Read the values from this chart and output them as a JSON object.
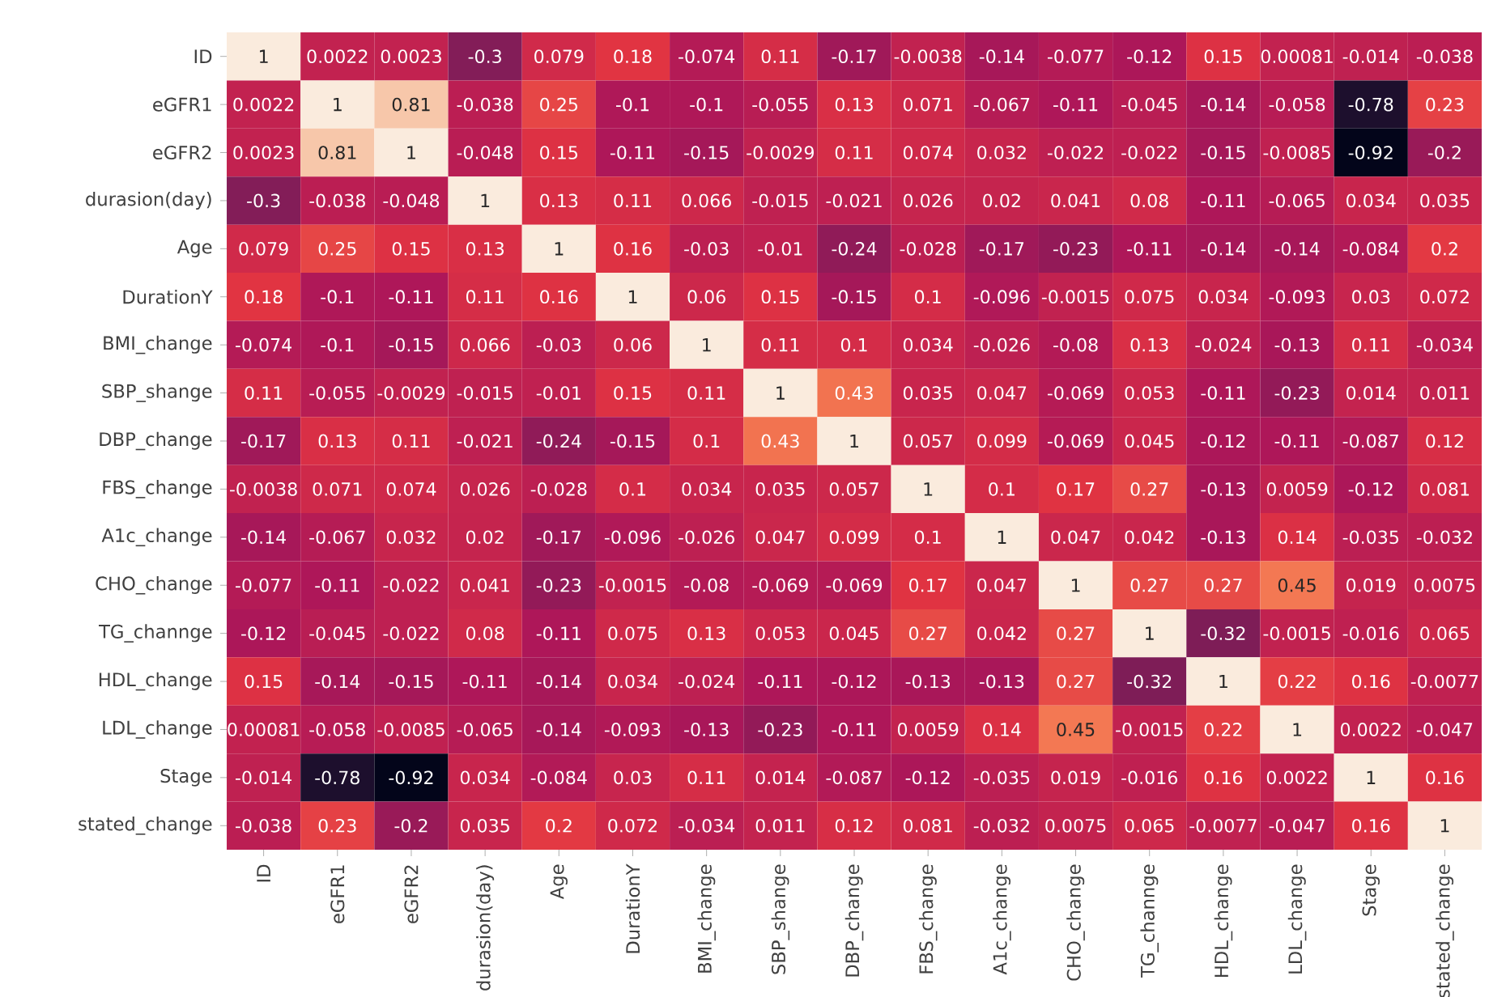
{
  "chart_data": {
    "type": "heatmap",
    "categories": [
      "ID",
      "eGFR1",
      "eGFR2",
      "durasion(day)",
      "Age",
      "DurationY",
      "BMI_change",
      "SBP_shange",
      "DBP_change",
      "FBS_change",
      "A1c_change",
      "CHO_change",
      "TG_channge",
      "HDL_change",
      "LDL_change",
      "Stage",
      "stated_change"
    ],
    "y_categories": [
      "ID",
      "eGFR1",
      "eGFR2",
      "durasion(day)",
      "Age",
      "DurationY",
      "BMI_change",
      "SBP_shange",
      "DBP_change",
      "FBS_change",
      "A1c_change",
      "CHO_change",
      "TG_channge",
      "HDL_change",
      "LDL_change",
      "Stage",
      "stated_change"
    ],
    "cells": [
      [
        1,
        0.0022,
        0.0023,
        -0.3,
        0.079,
        0.18,
        -0.074,
        0.11,
        -0.17,
        -0.0038,
        -0.14,
        -0.077,
        -0.12,
        0.15,
        0.00081,
        -0.014,
        -0.038
      ],
      [
        0.0022,
        1,
        0.81,
        -0.038,
        0.25,
        -0.1,
        -0.1,
        -0.055,
        0.13,
        0.071,
        -0.067,
        -0.11,
        -0.045,
        -0.14,
        -0.058,
        -0.78,
        0.23
      ],
      [
        0.0023,
        0.81,
        1,
        -0.048,
        0.15,
        -0.11,
        -0.15,
        -0.0029,
        0.11,
        0.074,
        0.032,
        -0.022,
        -0.022,
        -0.15,
        -0.0085,
        -0.92,
        -0.2
      ],
      [
        -0.3,
        -0.038,
        -0.048,
        1,
        0.13,
        0.11,
        0.066,
        -0.015,
        -0.021,
        0.026,
        0.02,
        0.041,
        0.08,
        -0.11,
        -0.065,
        0.034,
        0.035
      ],
      [
        0.079,
        0.25,
        0.15,
        0.13,
        1,
        0.16,
        -0.03,
        -0.01,
        -0.24,
        -0.028,
        -0.17,
        -0.23,
        -0.11,
        -0.14,
        -0.14,
        -0.084,
        0.2
      ],
      [
        0.18,
        -0.1,
        -0.11,
        0.11,
        0.16,
        1,
        0.06,
        0.15,
        -0.15,
        0.1,
        -0.096,
        -0.0015,
        0.075,
        0.034,
        -0.093,
        0.03,
        0.072
      ],
      [
        -0.074,
        -0.1,
        -0.15,
        0.066,
        -0.03,
        0.06,
        1,
        0.11,
        0.1,
        0.034,
        -0.026,
        -0.08,
        0.13,
        -0.024,
        -0.13,
        0.11,
        -0.034
      ],
      [
        0.11,
        -0.055,
        -0.0029,
        -0.015,
        -0.01,
        0.15,
        0.11,
        1,
        0.43,
        0.035,
        0.047,
        -0.069,
        0.053,
        -0.11,
        -0.23,
        0.014,
        0.011
      ],
      [
        -0.17,
        0.13,
        0.11,
        -0.021,
        -0.24,
        -0.15,
        0.1,
        0.43,
        1,
        0.057,
        0.099,
        -0.069,
        0.045,
        -0.12,
        -0.11,
        -0.087,
        0.12
      ],
      [
        -0.0038,
        0.071,
        0.074,
        0.026,
        -0.028,
        0.1,
        0.034,
        0.035,
        0.057,
        1,
        0.1,
        0.17,
        0.27,
        -0.13,
        0.0059,
        -0.12,
        0.081
      ],
      [
        -0.14,
        -0.067,
        0.032,
        0.02,
        -0.17,
        -0.096,
        -0.026,
        0.047,
        0.099,
        0.1,
        1,
        0.047,
        0.042,
        -0.13,
        0.14,
        -0.035,
        -0.032
      ],
      [
        -0.077,
        -0.11,
        -0.022,
        0.041,
        -0.23,
        -0.0015,
        -0.08,
        -0.069,
        -0.069,
        0.17,
        0.047,
        1,
        0.27,
        0.27,
        0.45,
        0.019,
        0.0075
      ],
      [
        -0.12,
        -0.045,
        -0.022,
        0.08,
        -0.11,
        0.075,
        0.13,
        0.053,
        0.045,
        0.27,
        0.042,
        0.27,
        1,
        -0.32,
        -0.0015,
        -0.016,
        0.065
      ],
      [
        0.15,
        -0.14,
        -0.15,
        -0.11,
        -0.14,
        0.034,
        -0.024,
        -0.11,
        -0.12,
        -0.13,
        -0.13,
        0.27,
        -0.32,
        1,
        0.22,
        0.16,
        -0.0077
      ],
      [
        0.00081,
        -0.058,
        -0.0085,
        -0.065,
        -0.14,
        -0.093,
        -0.13,
        -0.23,
        -0.11,
        0.0059,
        0.14,
        0.45,
        -0.0015,
        0.22,
        1,
        0.0022,
        -0.047
      ],
      [
        -0.014,
        -0.78,
        -0.92,
        0.034,
        -0.084,
        0.03,
        0.11,
        0.014,
        -0.087,
        -0.12,
        -0.035,
        0.019,
        -0.016,
        0.16,
        0.0022,
        1,
        0.16
      ],
      [
        -0.038,
        0.23,
        -0.2,
        0.035,
        0.2,
        0.072,
        -0.034,
        0.011,
        0.12,
        0.081,
        -0.032,
        0.0075,
        0.065,
        -0.0077,
        -0.047,
        0.16,
        1
      ]
    ],
    "data_labels": true
  }
}
